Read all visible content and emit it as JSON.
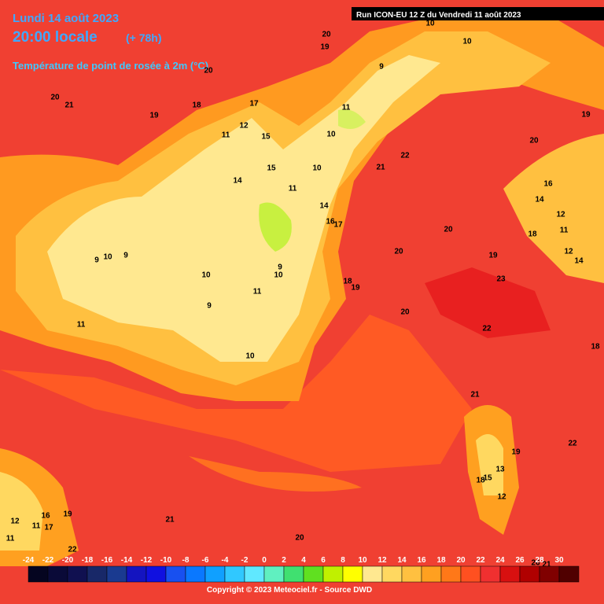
{
  "header": {
    "date": "Lundi 14 août 2023",
    "time": "20:00 locale",
    "lead": "(+ 78h)",
    "parameter": "Température de point de rosée à 2m (°C)",
    "run": "Run ICON-EU 12 Z du Vendredi 11 août 2023"
  },
  "contour_labels": [
    20,
    19,
    20,
    20,
    21,
    19,
    18,
    17,
    12,
    15,
    11,
    11,
    10,
    10,
    10,
    9,
    19,
    20,
    22,
    21,
    10,
    15,
    11,
    14,
    16,
    14,
    12,
    11,
    18,
    20,
    20,
    19,
    12,
    14,
    23,
    14,
    16,
    17,
    9,
    10,
    10,
    9,
    10,
    9,
    11,
    18,
    19,
    9,
    20,
    22,
    18,
    11,
    10,
    21,
    19,
    22,
    13,
    18,
    15,
    12,
    16,
    19,
    12,
    11,
    17,
    11,
    22,
    21,
    20,
    26,
    21
  ],
  "legend": {
    "ticks": [
      -24,
      -22,
      -20,
      -18,
      -16,
      -14,
      -12,
      -10,
      -8,
      -6,
      -4,
      -2,
      0,
      2,
      4,
      6,
      8,
      10,
      12,
      14,
      16,
      18,
      20,
      22,
      24,
      26,
      28,
      30
    ],
    "colors": [
      "#050520",
      "#0a0a38",
      "#101050",
      "#182868",
      "#1a3a90",
      "#1414c0",
      "#1010e0",
      "#1850f0",
      "#0a78ff",
      "#10a0ff",
      "#30c8ff",
      "#60e8ff",
      "#60f0c0",
      "#40e070",
      "#60e020",
      "#c0f000",
      "#ffff00",
      "#ffe890",
      "#ffd860",
      "#ffc040",
      "#ffa020",
      "#ff7818",
      "#ff5020",
      "#f03030",
      "#d81010",
      "#b00000",
      "#800000",
      "#500000"
    ]
  },
  "footer": {
    "copyright": "Copyright © 2023 Meteociel.fr - Source DWD"
  }
}
